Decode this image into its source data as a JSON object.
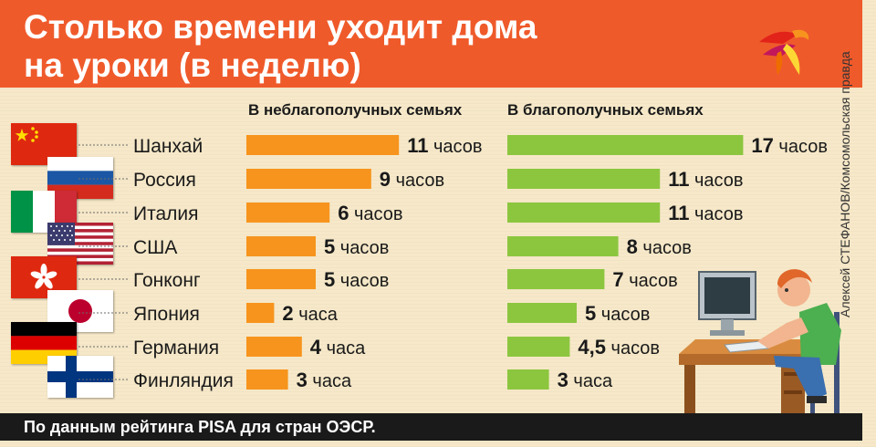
{
  "header": {
    "title_line1": "Столько времени уходит дома",
    "title_line2": "на уроки (в неделю)"
  },
  "credit": "Алексей СТЕФАНОВ/Комсомольская правда",
  "footer": "По данным рейтинга PISA для стран ОЭСР.",
  "colors": {
    "header_bg": "#ef5a2b",
    "background": "#f6e8c8",
    "bar_orange": "#f7941d",
    "bar_green": "#8cc63f",
    "footer_bg": "#1a1a1a"
  },
  "chart_data": {
    "type": "bar",
    "orientation": "horizontal",
    "categories": [
      "Шанхай",
      "Россия",
      "Италия",
      "США",
      "Гонконг",
      "Япония",
      "Германия",
      "Финляндия"
    ],
    "series": [
      {
        "name": "В неблагополучных семьях",
        "color": "#f7941d",
        "values": [
          11,
          9,
          6,
          5,
          5,
          2,
          4,
          3
        ],
        "labels": [
          "11 часов",
          "9 часов",
          "6 часов",
          "5 часов",
          "5 часов",
          "2 часа",
          "4 часа",
          "3 часа"
        ]
      },
      {
        "name": "В благополучных семьях",
        "color": "#8cc63f",
        "values": [
          17,
          11,
          11,
          8,
          7,
          5,
          4.5,
          3
        ],
        "labels": [
          "17 часов",
          "11 часов",
          "11 часов",
          "8 часов",
          "7 часов",
          "5 часов",
          "4,5 часов",
          "3 часа"
        ]
      }
    ],
    "flags": [
      "china-flag-icon",
      "russia-flag-icon",
      "italy-flag-icon",
      "usa-flag-icon",
      "hong-kong-flag-icon",
      "japan-flag-icon",
      "germany-flag-icon",
      "finland-flag-icon"
    ]
  }
}
